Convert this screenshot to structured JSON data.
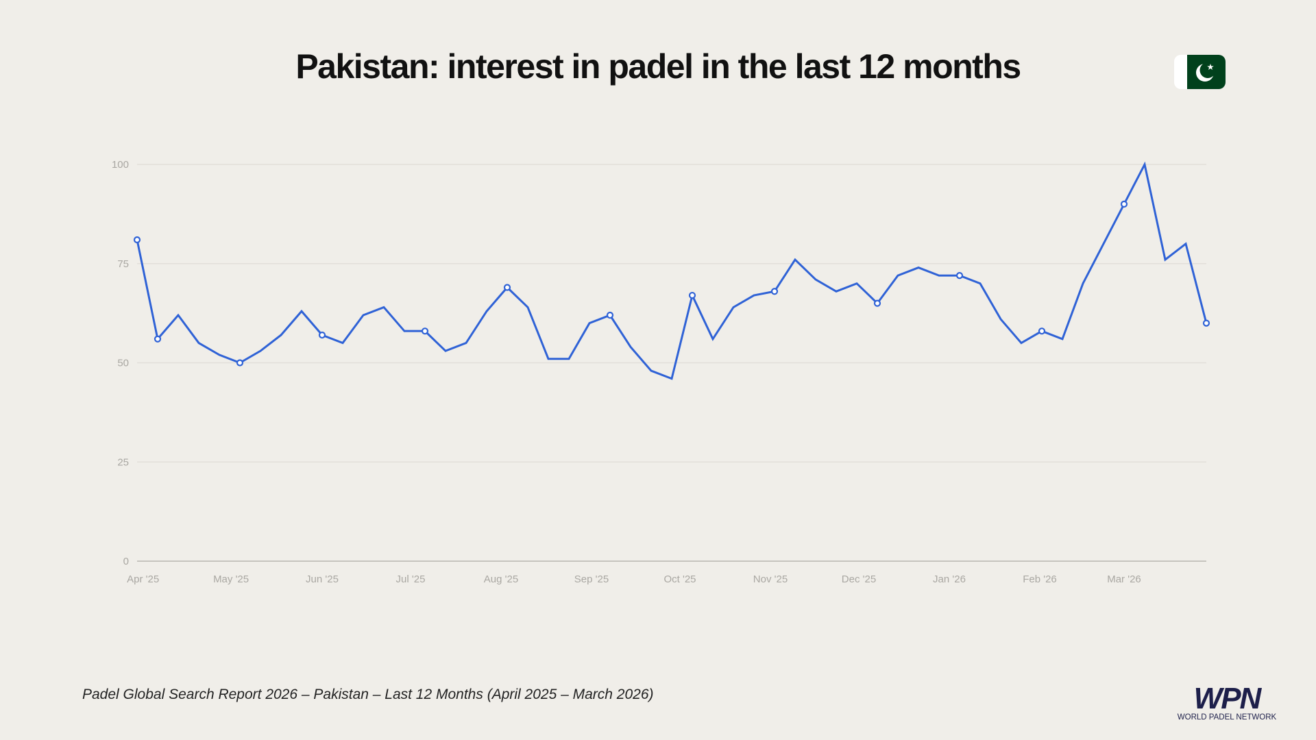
{
  "title": "Pakistan: interest in padel in the last 12 months",
  "footnote": "Padel Global Search Report 2026 – Pakistan – Last 12 Months (April 2025 – March 2026)",
  "flag": {
    "country": "Pakistan",
    "icon": "pakistan-flag-icon",
    "green": "#01411c",
    "white": "#ffffff"
  },
  "logo": {
    "text": "WPN",
    "subtitle": "WORLD PADEL NETWORK",
    "color": "#1d1f4a"
  },
  "chart_data": {
    "type": "line",
    "title": "",
    "xlabel": "",
    "ylabel": "",
    "ylim": [
      0,
      100
    ],
    "yticks": [
      "0",
      "25",
      "50",
      "75",
      "100"
    ],
    "xtick_labels": [
      "Apr '25",
      "May '25",
      "Jun '25",
      "Jul '25",
      "Aug '25",
      "Sep '25",
      "Oct '25",
      "Nov '25",
      "Dec '25",
      "Jan '26",
      "Feb '26",
      "Mar '26"
    ],
    "grid": true,
    "line_color": "#2f62d6",
    "values": [
      81,
      56,
      62,
      55,
      52,
      50,
      53,
      57,
      63,
      57,
      55,
      62,
      64,
      58,
      58,
      53,
      55,
      63,
      69,
      64,
      51,
      51,
      60,
      62,
      54,
      48,
      46,
      67,
      56,
      64,
      67,
      68,
      76,
      71,
      68,
      70,
      65,
      72,
      74,
      72,
      72,
      70,
      61,
      55,
      58,
      56,
      70,
      80,
      90,
      100,
      76,
      80,
      60
    ],
    "marked_indices": [
      0,
      1,
      5,
      9,
      14,
      18,
      23,
      27,
      31,
      36,
      40,
      44,
      48,
      52
    ]
  }
}
